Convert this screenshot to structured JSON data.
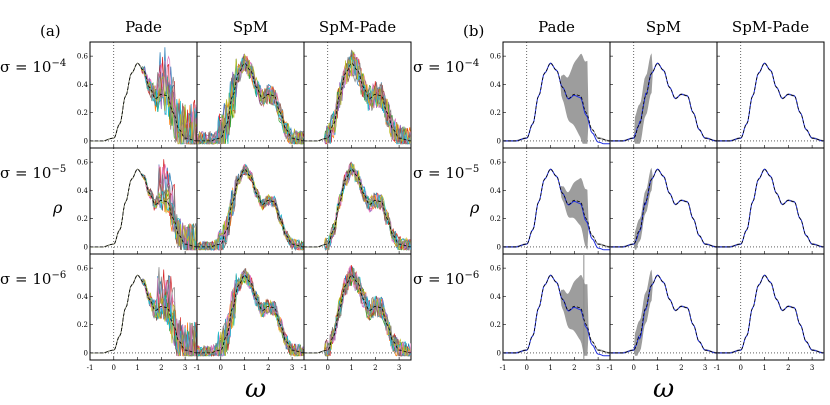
{
  "figure": {
    "left_panel_label": "(a)",
    "right_panel_label": "(b)",
    "columns": [
      "Pade",
      "SpM",
      "SpM-Pade"
    ],
    "rows": [
      "σ = 10−4",
      "σ = 10−5",
      "σ = 10−6"
    ],
    "row_exponents": [
      "−4",
      "−5",
      "−6"
    ],
    "sigma_prefix": "σ = 10",
    "ylabel": "ρ",
    "xlabel": "ω",
    "x_ticks": [
      "-1",
      "0",
      "1",
      "2",
      "3"
    ],
    "y_ticks": [
      "0",
      "0.2",
      "0.4",
      "0.6"
    ]
  },
  "colors": {
    "exact": "#000000",
    "gray_band": "#8c8c8c",
    "blue_mean": "#1f2fe0",
    "multi": [
      "#1f77b4",
      "#ff7f0e",
      "#2ca02c",
      "#d62728",
      "#9467bd",
      "#8c564b",
      "#e377c2",
      "#17becf",
      "#bcbd22",
      "#7f7f7f"
    ]
  },
  "chart_data": [
    {
      "type": "line",
      "panel": "(a)",
      "grid": false,
      "xlim": [
        -1,
        3.5
      ],
      "ylim": [
        -0.05,
        0.7
      ],
      "exact_spectrum": {
        "x": [
          -1,
          -0.5,
          0,
          0.25,
          0.5,
          0.75,
          1,
          1.25,
          1.5,
          1.75,
          2,
          2.25,
          2.5,
          2.75,
          3,
          3.5
        ],
        "y": [
          0,
          0,
          0.02,
          0.12,
          0.32,
          0.48,
          0.55,
          0.5,
          0.38,
          0.3,
          0.33,
          0.32,
          0.2,
          0.08,
          0.02,
          0
        ]
      },
      "cells": [
        "Pade σ=10−4",
        "SpM σ=10−4",
        "SpM-Pade σ=10−4",
        "Pade σ=10−5",
        "SpM σ=10−5",
        "SpM-Pade σ=10−5",
        "Pade σ=10−6",
        "SpM σ=10−6",
        "SpM-Pade σ=10−6"
      ]
    },
    {
      "type": "line",
      "panel": "(b)",
      "grid": false,
      "xlim": [
        -1,
        3.5
      ],
      "ylim": [
        -0.05,
        0.7
      ],
      "exact_spectrum": {
        "x": [
          -1,
          -0.5,
          0,
          0.25,
          0.5,
          0.75,
          1,
          1.25,
          1.5,
          1.75,
          2,
          2.25,
          2.5,
          2.75,
          3,
          3.5
        ],
        "y": [
          0,
          0,
          0.02,
          0.12,
          0.32,
          0.48,
          0.55,
          0.5,
          0.38,
          0.3,
          0.33,
          0.32,
          0.2,
          0.08,
          0.02,
          0
        ]
      },
      "cells": [
        "Pade σ=10−4",
        "SpM σ=10−4",
        "SpM-Pade σ=10−4",
        "Pade σ=10−5",
        "SpM σ=10−5",
        "SpM-Pade σ=10−5",
        "Pade σ=10−6",
        "SpM σ=10−6",
        "SpM-Pade σ=10−6"
      ]
    }
  ]
}
